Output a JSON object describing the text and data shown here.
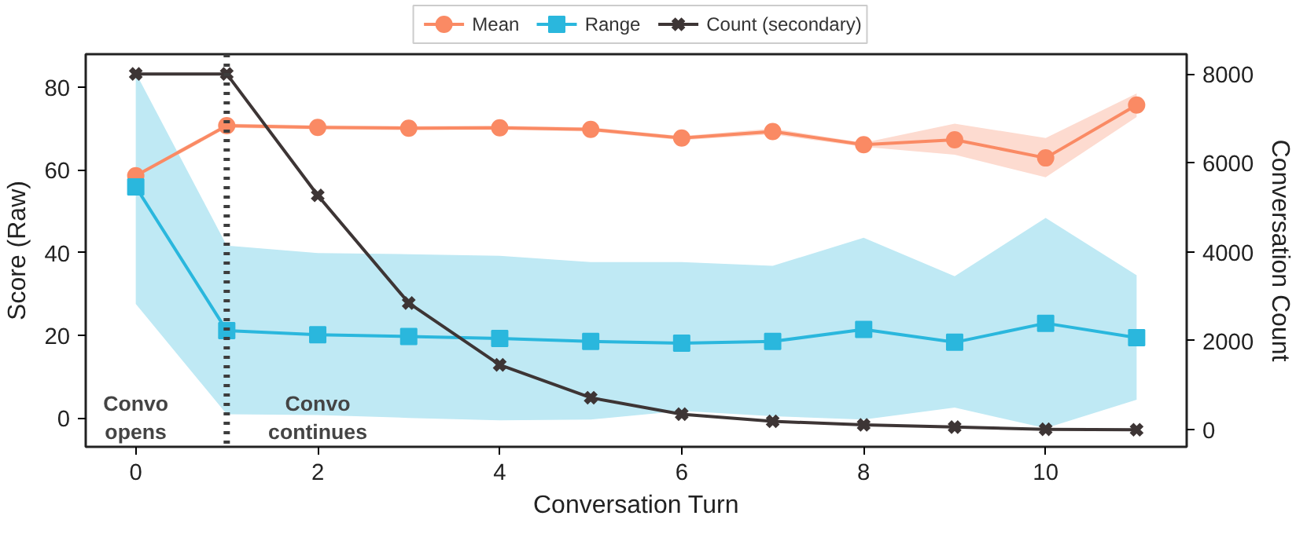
{
  "chart_data": {
    "type": "line",
    "xlabel": "Conversation Turn",
    "ylabel": "Score (Raw)",
    "y2label": "Conversation Count",
    "x": [
      0,
      1,
      2,
      3,
      4,
      5,
      6,
      7,
      8,
      9,
      10,
      11
    ],
    "xlim": [
      -0.55,
      11.55
    ],
    "xticks": [
      0,
      2,
      4,
      6,
      8,
      10
    ],
    "ylim": [
      -7,
      88
    ],
    "yticks": [
      0,
      20,
      40,
      60,
      80
    ],
    "y2lim": [
      -384,
      8444
    ],
    "y2ticks": [
      0,
      2000,
      4000,
      6000,
      8000
    ],
    "series": [
      {
        "name": "Mean",
        "color": "#fa8a64",
        "marker": "circle",
        "values": [
          58.6,
          70.7,
          70.3,
          70.1,
          70.2,
          69.8,
          67.7,
          69.3,
          66.1,
          67.3,
          62.9,
          75.7
        ],
        "lower": [
          58.0,
          70.2,
          69.8,
          69.6,
          69.7,
          69.3,
          67.2,
          68.6,
          65.6,
          63.7,
          58.2,
          72.8
        ],
        "upper": [
          59.2,
          71.2,
          70.8,
          70.6,
          70.7,
          70.3,
          68.2,
          70.0,
          66.6,
          71.2,
          67.7,
          78.5
        ]
      },
      {
        "name": "Range",
        "color": "#2ab7dd",
        "marker": "square",
        "values": [
          55.9,
          21.1,
          20.1,
          19.7,
          19.2,
          18.5,
          18.1,
          18.5,
          21.4,
          18.3,
          22.9,
          19.4
        ],
        "lower": [
          27.6,
          0.9,
          0.7,
          0.0,
          -0.6,
          -0.4,
          1.7,
          0.4,
          -0.4,
          2.5,
          -2.5,
          4.4
        ],
        "upper": [
          83.5,
          41.7,
          39.9,
          39.6,
          39.2,
          37.7,
          37.7,
          36.8,
          43.6,
          34.3,
          48.4,
          34.5
        ]
      },
      {
        "name": "Count (secondary)",
        "color": "#3d3535",
        "marker": "cross",
        "axis": "y2",
        "values": [
          8000,
          8000,
          5270,
          2850,
          1460,
          720,
          350,
          190,
          110,
          60,
          10,
          0
        ]
      }
    ],
    "ref_lines": [
      {
        "axis": "x",
        "value": 1,
        "color": "#3d3d3d",
        "line_style": "dotted"
      }
    ],
    "annotations": [
      "Convo\nopens",
      "Convo\ncontinues"
    ],
    "legend": "top",
    "grid": false
  }
}
